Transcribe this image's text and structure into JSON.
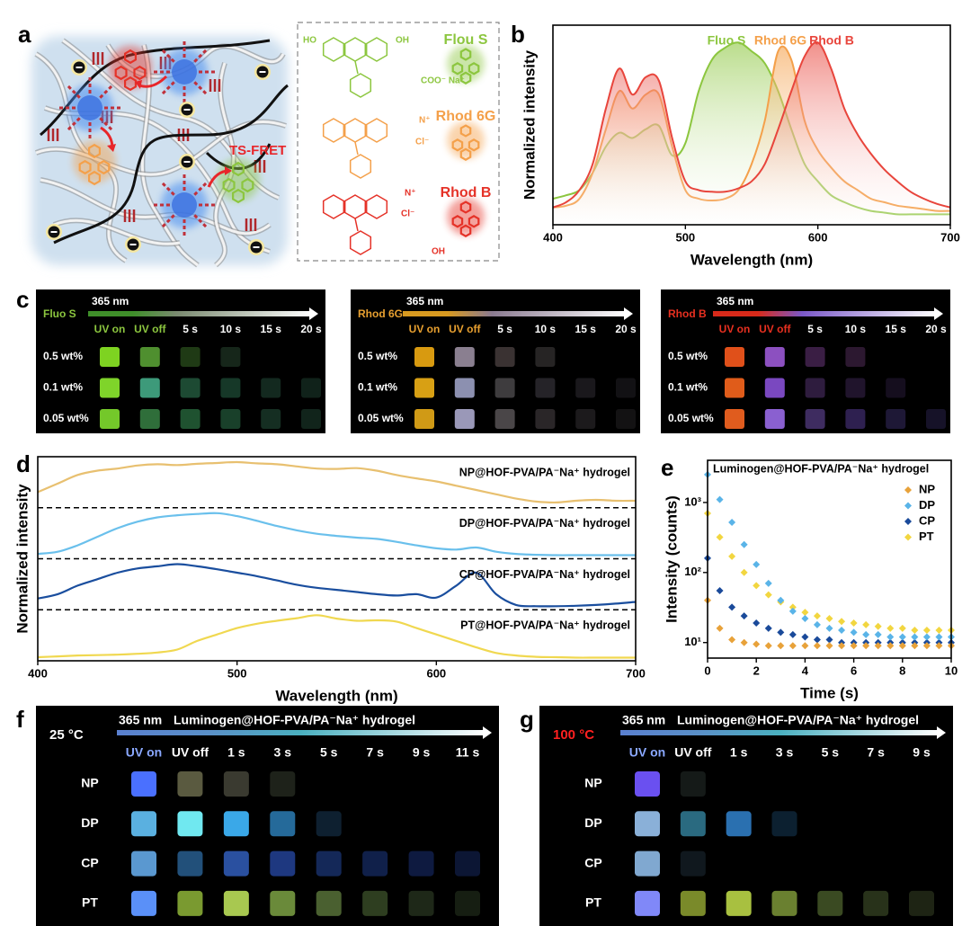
{
  "panel_labels": [
    "a",
    "b",
    "c",
    "d",
    "e",
    "f",
    "g"
  ],
  "scheme": {
    "fret_label": "TS-FRET",
    "dyes": [
      "Flou S",
      "Rhod 6G",
      "Rhod B"
    ],
    "dye_colors": [
      "#8cc63f",
      "#f4a04a",
      "#e53228"
    ],
    "chem_texts": [
      "HO",
      "OH",
      "COO⁻ Na⁺",
      "N⁺",
      "Cl⁻",
      "N⁺",
      "Cl⁻",
      "OH"
    ]
  },
  "chart_data": [
    {
      "type": "area",
      "xlabel": "Wavelength (nm)",
      "ylabel": "Normalized intensity",
      "x": [
        400,
        410,
        420,
        430,
        440,
        450,
        460,
        470,
        480,
        490,
        500,
        510,
        520,
        530,
        540,
        550,
        560,
        570,
        580,
        590,
        600,
        610,
        620,
        630,
        640,
        650,
        660,
        670,
        680,
        690,
        700
      ],
      "xlim": [
        400,
        700
      ],
      "xticks": [
        400,
        500,
        600,
        700
      ],
      "ylim": [
        -0.05,
        1.1
      ],
      "series": [
        {
          "name": "Fluo S",
          "color": "#8cc63f",
          "values": [
            0.1,
            0.12,
            0.15,
            0.25,
            0.4,
            0.48,
            0.45,
            0.5,
            0.52,
            0.35,
            0.42,
            0.72,
            0.9,
            0.97,
            1.0,
            0.95,
            0.88,
            0.72,
            0.5,
            0.3,
            0.2,
            0.12,
            0.08,
            0.05,
            0.03,
            0.02,
            0.01,
            0.01,
            0.01,
            0.01,
            0.01
          ]
        },
        {
          "name": "Rhod 6G",
          "color": "#f4a04a",
          "values": [
            0.05,
            0.06,
            0.1,
            0.25,
            0.5,
            0.72,
            0.62,
            0.7,
            0.7,
            0.4,
            0.15,
            0.1,
            0.09,
            0.1,
            0.15,
            0.3,
            0.55,
            0.95,
            0.9,
            0.55,
            0.38,
            0.28,
            0.2,
            0.15,
            0.1,
            0.08,
            0.06,
            0.05,
            0.04,
            0.03,
            0.03
          ]
        },
        {
          "name": "Rhod B",
          "color": "#e8453c",
          "values": [
            0.05,
            0.08,
            0.15,
            0.3,
            0.62,
            0.85,
            0.7,
            0.8,
            0.78,
            0.45,
            0.2,
            0.15,
            0.14,
            0.14,
            0.16,
            0.2,
            0.3,
            0.5,
            0.72,
            0.92,
            1.0,
            0.85,
            0.62,
            0.47,
            0.36,
            0.27,
            0.2,
            0.14,
            0.1,
            0.07,
            0.05
          ]
        }
      ]
    },
    {
      "type": "ridgeline",
      "xlabel": "Wavelength (nm)",
      "ylabel": "Normalized intensity",
      "x": [
        400,
        410,
        420,
        430,
        440,
        450,
        460,
        470,
        480,
        490,
        500,
        510,
        520,
        530,
        540,
        550,
        560,
        570,
        580,
        590,
        600,
        610,
        620,
        630,
        640,
        650,
        660,
        670,
        680,
        690,
        700
      ],
      "xlim": [
        400,
        700
      ],
      "xticks": [
        400,
        500,
        600,
        700
      ],
      "ylim": [
        0,
        1
      ],
      "series": [
        {
          "name": "NP@HOF-PVA/PA⁻Na⁺ hydrogel",
          "color": "#e8c070",
          "values": [
            0.3,
            0.5,
            0.7,
            0.8,
            0.85,
            0.92,
            0.95,
            0.93,
            0.96,
            0.98,
            1.0,
            0.97,
            0.95,
            0.9,
            0.85,
            0.84,
            0.86,
            0.8,
            0.7,
            0.62,
            0.55,
            0.45,
            0.35,
            0.25,
            0.15,
            0.08,
            0.06,
            0.1,
            0.12,
            0.1,
            0.1
          ]
        },
        {
          "name": "DP@HOF-PVA/PA⁻Na⁺ hydrogel",
          "color": "#6ac0ec",
          "values": [
            0.05,
            0.1,
            0.25,
            0.45,
            0.65,
            0.8,
            0.9,
            0.95,
            0.98,
            1.0,
            0.93,
            0.82,
            0.7,
            0.6,
            0.52,
            0.47,
            0.43,
            0.4,
            0.33,
            0.25,
            0.18,
            0.15,
            0.2,
            0.1,
            0.05,
            0.03,
            0.02,
            0.02,
            0.02,
            0.02,
            0.02
          ]
        },
        {
          "name": "CP@HOF-PVA/PA⁻Na⁺ hydrogel",
          "color": "#1a4e9e",
          "values": [
            0.2,
            0.3,
            0.5,
            0.65,
            0.8,
            0.9,
            0.95,
            1.0,
            0.95,
            0.88,
            0.8,
            0.72,
            0.62,
            0.52,
            0.45,
            0.4,
            0.35,
            0.3,
            0.27,
            0.3,
            0.22,
            0.5,
            0.8,
            0.3,
            0.05,
            0.02,
            0.02,
            0.03,
            0.05,
            0.08,
            0.12
          ]
        },
        {
          "name": "PT@HOF-PVA/PA⁻Na⁺ hydrogel",
          "color": "#f0d850",
          "values": [
            0.02,
            0.04,
            0.06,
            0.07,
            0.08,
            0.1,
            0.13,
            0.2,
            0.4,
            0.55,
            0.7,
            0.8,
            0.87,
            0.93,
            1.0,
            0.92,
            0.87,
            0.88,
            0.85,
            0.7,
            0.55,
            0.4,
            0.25,
            0.12,
            0.06,
            0.03,
            0.02,
            0.01,
            0.01,
            0.01,
            0.01
          ]
        }
      ]
    },
    {
      "type": "scatter",
      "title": "Luminogen@HOF-PVA/PA⁻Na⁺ hydrogel",
      "xlabel": "Time (s)",
      "ylabel": "Intensity (counts)",
      "log_y": true,
      "x": [
        0,
        0.5,
        1,
        1.5,
        2,
        2.5,
        3,
        3.5,
        4,
        4.5,
        5,
        5.5,
        6,
        6.5,
        7,
        7.5,
        8,
        8.5,
        9,
        9.5,
        10
      ],
      "xlim": [
        0,
        10
      ],
      "xticks": [
        0,
        2,
        4,
        6,
        8,
        10
      ],
      "ylim": [
        6,
        4000
      ],
      "yticks": [
        {
          "value": 10,
          "label": "10¹"
        },
        {
          "value": 100,
          "label": "10²"
        },
        {
          "value": 1000,
          "label": "10³"
        }
      ],
      "legend": "upper right",
      "series": [
        {
          "name": "NP",
          "color": "#e8a23a",
          "values": [
            40,
            16,
            11,
            10,
            9.5,
            9,
            9,
            9,
            9,
            9,
            9,
            9,
            9,
            9,
            9,
            9,
            9,
            9,
            9,
            9,
            9
          ]
        },
        {
          "name": "DP",
          "color": "#5ab4e8",
          "values": [
            2500,
            1100,
            520,
            250,
            130,
            70,
            40,
            28,
            22,
            18,
            16,
            15,
            14,
            13,
            13,
            12,
            12,
            12,
            12,
            12,
            12
          ]
        },
        {
          "name": "CP",
          "color": "#1a4a9a",
          "values": [
            160,
            55,
            32,
            24,
            19,
            16,
            14,
            13,
            12,
            11,
            11,
            10,
            10,
            10,
            10,
            10,
            10,
            10,
            10,
            10,
            10
          ]
        },
        {
          "name": "PT",
          "color": "#f2d640",
          "values": [
            700,
            320,
            170,
            100,
            65,
            48,
            38,
            32,
            27,
            24,
            22,
            20,
            19,
            18,
            17,
            16,
            16,
            15,
            15,
            15,
            15
          ]
        }
      ]
    }
  ],
  "photos_c": [
    {
      "dye": "Fluo S",
      "dye_color": "#8cc63f",
      "arrow_colors": [
        "#3f8f2a",
        "#7a8a70"
      ],
      "excitation": "365 nm",
      "columns": [
        "UV on",
        "UV off",
        "5 s",
        "10 s",
        "15 s",
        "20 s"
      ],
      "rows": [
        "0.5 wt%",
        "0.1 wt%",
        "0.05 wt%"
      ],
      "cells": [
        [
          "#7ed321",
          "#4f8f2f",
          "#1f3a15",
          "#16261a",
          null,
          null
        ],
        [
          "#7fd42a",
          "#3d9a7a",
          "#1d4a33",
          "#163828",
          "#13291f",
          "#10221a"
        ],
        [
          "#74c82a",
          "#2f6e3a",
          "#1f5230",
          "#19402a",
          "#152e22",
          "#11241b"
        ]
      ]
    },
    {
      "dye": "Rhod 6G",
      "dye_color": "#e8a030",
      "arrow_colors": [
        "#d89a20",
        "#8a7a90"
      ],
      "excitation": "365 nm",
      "columns": [
        "UV on",
        "UV off",
        "5 s",
        "10 s",
        "15 s",
        "20 s"
      ],
      "rows": [
        "0.5 wt%",
        "0.1 wt%",
        "0.05 wt%"
      ],
      "cells": [
        [
          "#d89a10",
          "#8a7f90",
          "#3a3232",
          "#262424",
          null,
          null
        ],
        [
          "#d8a014",
          "#8c90b0",
          "#3e3c3e",
          "#252328",
          "#1a181c",
          "#121114"
        ],
        [
          "#d09a16",
          "#9a98b8",
          "#4a4648",
          "#2a2628",
          "#1c1a1c",
          "#131213"
        ]
      ]
    },
    {
      "dye": "Rhod B",
      "dye_color": "#e83020",
      "arrow_colors": [
        "#d82a1a",
        "#7a58c8"
      ],
      "excitation": "365 nm",
      "columns": [
        "UV on",
        "UV off",
        "5 s",
        "10 s",
        "15 s",
        "20 s"
      ],
      "rows": [
        "0.5 wt%",
        "0.1 wt%",
        "0.05 wt%"
      ],
      "cells": [
        [
          "#e0501a",
          "#8c50c0",
          "#3a1e44",
          "#2c1830",
          null,
          null
        ],
        [
          "#e05c1a",
          "#7a48c0",
          "#2e1c3e",
          "#20142c",
          "#150e1e",
          null
        ],
        [
          "#e05c1e",
          "#8a60d0",
          "#3e2c60",
          "#2e2050",
          "#1e1836",
          "#161228"
        ]
      ]
    }
  ],
  "photos_fg": [
    {
      "temperature": "25 °C",
      "temperature_color": "#ffffff",
      "excitation": "365 nm",
      "subtitle": "Luminogen@HOF-PVA/PA⁻Na⁺ hydrogel",
      "columns": [
        "UV on",
        "UV off",
        "1 s",
        "3 s",
        "5 s",
        "7 s",
        "9 s",
        "11 s"
      ],
      "rows": [
        "NP",
        "DP",
        "CP",
        "PT"
      ],
      "cells": [
        [
          "#4a70ff",
          "#5a5a40",
          "#3a3a30",
          "#1e221a",
          null,
          null,
          null,
          null
        ],
        [
          "#5ab0e0",
          "#70e8f0",
          "#3aa8e8",
          "#256a9a",
          "#0e2030",
          null,
          null,
          null
        ],
        [
          "#5a98d0",
          "#22507a",
          "#2a50a0",
          "#1e3880",
          "#142858",
          "#10204a",
          "#0e1a40",
          "#0c1634"
        ],
        [
          "#5a90f8",
          "#7a9a30",
          "#a8c850",
          "#6a8a3a",
          "#4a6030",
          "#2e3e20",
          "#1e2818",
          "#161e12"
        ]
      ]
    },
    {
      "temperature": "100 °C",
      "temperature_color": "#ff2020",
      "excitation": "365 nm",
      "subtitle": "Luminogen@HOF-PVA/PA⁻Na⁺ hydrogel",
      "columns": [
        "UV on",
        "UV off",
        "1 s",
        "3 s",
        "5 s",
        "7 s",
        "9 s"
      ],
      "rows": [
        "NP",
        "DP",
        "CP",
        "PT"
      ],
      "cells": [
        [
          "#6a50f0",
          "#151a18",
          null,
          null,
          null,
          null,
          null
        ],
        [
          "#8ab0d8",
          "#2a6a80",
          "#2a70b0",
          "#0c2030",
          null,
          null,
          null
        ],
        [
          "#80a8d0",
          "#10181e",
          null,
          null,
          null,
          null,
          null
        ],
        [
          "#8088f8",
          "#7a8a2a",
          "#a8c040",
          "#6a8030",
          "#3a4a22",
          "#28321a",
          "#1e2414"
        ]
      ]
    }
  ]
}
